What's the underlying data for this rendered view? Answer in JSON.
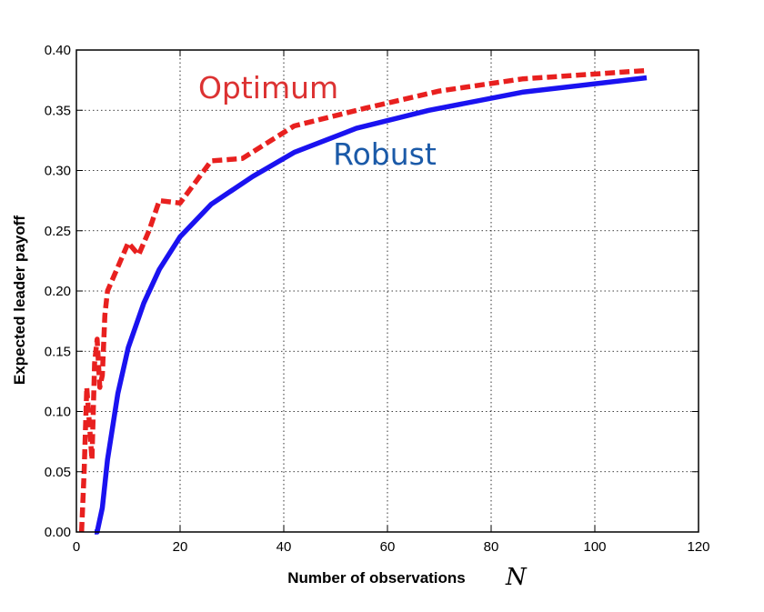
{
  "chart_data": {
    "type": "line",
    "title": "",
    "xlabel": "Number of observations",
    "xlabel_symbol": "N",
    "ylabel": "Expected leader payoff",
    "xlim": [
      0,
      120
    ],
    "ylim": [
      0,
      0.4
    ],
    "xticks": [
      0,
      20,
      40,
      60,
      80,
      100,
      120
    ],
    "yticks": [
      0.0,
      0.05,
      0.1,
      0.15,
      0.2,
      0.25,
      0.3,
      0.35,
      0.4
    ],
    "ytick_labels": [
      "0.00",
      "0.05",
      "0.10",
      "0.15",
      "0.20",
      "0.25",
      "0.30",
      "0.35",
      "0.40"
    ],
    "grid": true,
    "legend": "none",
    "series": [
      {
        "name": "Optimum",
        "color": "#e8201f",
        "style": "dashed",
        "x": [
          1,
          1.5,
          2,
          2.5,
          3,
          3.5,
          4,
          4.5,
          5,
          5.5,
          6,
          8,
          10,
          12,
          14,
          16,
          20,
          26,
          32,
          42,
          56,
          70,
          86,
          110
        ],
        "y": [
          0.0,
          0.05,
          0.12,
          0.09,
          0.06,
          0.14,
          0.16,
          0.12,
          0.13,
          0.18,
          0.2,
          0.22,
          0.24,
          0.23,
          0.25,
          0.275,
          0.273,
          0.308,
          0.31,
          0.337,
          0.352,
          0.366,
          0.376,
          0.383
        ]
      },
      {
        "name": "Robust",
        "color": "#1a12f0",
        "style": "solid",
        "x": [
          3.5,
          4,
          5,
          6,
          8,
          10,
          13,
          16,
          20,
          26,
          34,
          42,
          54,
          68,
          86,
          110
        ],
        "y": [
          0.0,
          0.0,
          0.02,
          0.06,
          0.115,
          0.153,
          0.19,
          0.218,
          0.245,
          0.272,
          0.295,
          0.315,
          0.335,
          0.35,
          0.365,
          0.377
        ]
      }
    ],
    "annotations": [
      {
        "text": "Optimum",
        "color": "#dc3232",
        "x": 23.5,
        "y": 0.36
      },
      {
        "text": "Robust",
        "color": "#1b5aa8",
        "x": 49.5,
        "y": 0.305
      }
    ]
  }
}
